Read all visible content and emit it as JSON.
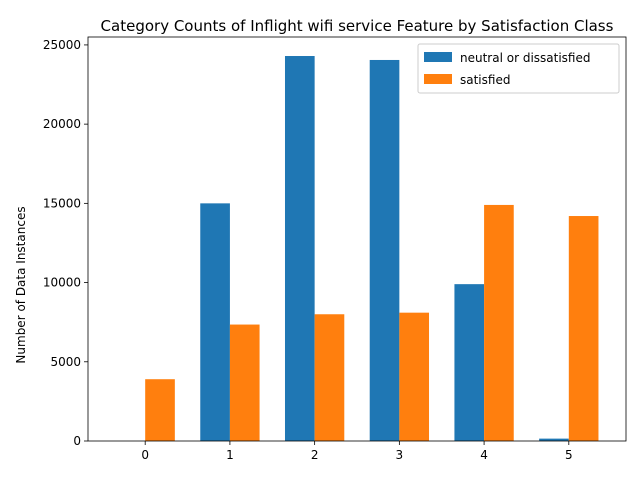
{
  "chart_data": {
    "type": "bar",
    "title": "Category Counts of Inflight wifi service Feature by Satisfaction Class",
    "xlabel": "",
    "ylabel": "Number of Data Instances",
    "categories": [
      "0",
      "1",
      "2",
      "3",
      "4",
      "5"
    ],
    "series": [
      {
        "name": "neutral or dissatisfied",
        "color": "#1f77b4",
        "values": [
          0,
          15000,
          24300,
          24050,
          9900,
          150
        ]
      },
      {
        "name": "satisfied",
        "color": "#ff7f0e",
        "values": [
          3900,
          7350,
          8000,
          8100,
          14900,
          14200
        ]
      }
    ],
    "ylim": [
      0,
      25500
    ],
    "yticks": [
      0,
      5000,
      10000,
      15000,
      20000,
      25000
    ],
    "grid": false,
    "legend_position": "top-right"
  }
}
